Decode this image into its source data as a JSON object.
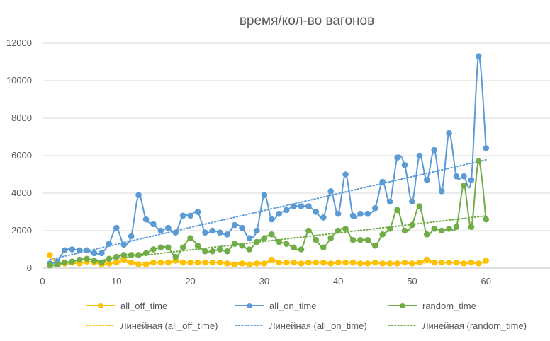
{
  "chart_data": {
    "type": "line",
    "title": "время/кол-во вагонов",
    "xlabel": "",
    "ylabel": "",
    "xlim": [
      0,
      70
    ],
    "ylim": [
      0,
      12000
    ],
    "x_ticks": [
      0,
      10,
      20,
      30,
      40,
      50,
      60
    ],
    "y_ticks": [
      0,
      2000,
      4000,
      6000,
      8000,
      10000,
      12000
    ],
    "grid": "horizontal",
    "legend_position": "bottom",
    "x": [
      1,
      2,
      3,
      4,
      5,
      6,
      7,
      8,
      9,
      10,
      11,
      12,
      13,
      14,
      15,
      16,
      17,
      18,
      19,
      20,
      21,
      22,
      23,
      24,
      25,
      26,
      27,
      28,
      29,
      30,
      31,
      32,
      33,
      34,
      35,
      36,
      37,
      38,
      39,
      40,
      41,
      42,
      43,
      44,
      45,
      46,
      47,
      48,
      49,
      50,
      51,
      52,
      53,
      54,
      55,
      56,
      57,
      58,
      59,
      60
    ],
    "series": [
      {
        "name": "all_off_time",
        "color": "#FFC000",
        "values": [
          700,
          250,
          250,
          300,
          250,
          350,
          300,
          200,
          250,
          300,
          450,
          300,
          200,
          200,
          300,
          300,
          300,
          400,
          300,
          300,
          300,
          300,
          300,
          300,
          250,
          200,
          250,
          200,
          250,
          250,
          450,
          300,
          300,
          300,
          250,
          300,
          300,
          300,
          250,
          300,
          300,
          300,
          250,
          250,
          300,
          250,
          250,
          250,
          300,
          250,
          300,
          450,
          300,
          300,
          300,
          300,
          250,
          300,
          250,
          400
        ],
        "trend": "linear"
      },
      {
        "name": "all_on_time",
        "color": "#5B9BD5",
        "values": [
          250,
          350,
          950,
          1000,
          950,
          950,
          800,
          800,
          1300,
          2150,
          1250,
          1700,
          3900,
          2600,
          2350,
          2000,
          2150,
          1900,
          2800,
          2800,
          3000,
          1900,
          2000,
          1900,
          1800,
          2300,
          2150,
          1600,
          2000,
          3900,
          2600,
          2900,
          3100,
          3300,
          3300,
          3300,
          3000,
          2700,
          4100,
          2900,
          5000,
          2800,
          2900,
          2900,
          3200,
          4600,
          3550,
          5900,
          5500,
          3550,
          6000,
          4700,
          6300,
          4100,
          7200,
          4900,
          4900,
          4700,
          11300,
          6400
        ],
        "trend": "linear"
      },
      {
        "name": "random_time",
        "color": "#70AD47",
        "values": [
          150,
          200,
          300,
          350,
          450,
          500,
          400,
          300,
          500,
          600,
          700,
          700,
          700,
          800,
          1000,
          1100,
          1100,
          600,
          1100,
          1600,
          1200,
          900,
          900,
          1000,
          900,
          1300,
          1200,
          1000,
          1400,
          1600,
          1800,
          1400,
          1300,
          1100,
          1000,
          2000,
          1500,
          1100,
          1600,
          2000,
          2100,
          1500,
          1500,
          1500,
          1200,
          1800,
          2100,
          3100,
          2000,
          2300,
          3300,
          1800,
          2100,
          2000,
          2100,
          2200,
          4400,
          2200,
          5700,
          2600
        ],
        "trend": "linear"
      }
    ],
    "legend": [
      "all_off_time",
      "all_on_time",
      "random_time",
      "Линейная (all_off_time)",
      "Линейная (all_on_time)",
      "Линейная (random_time)"
    ]
  }
}
